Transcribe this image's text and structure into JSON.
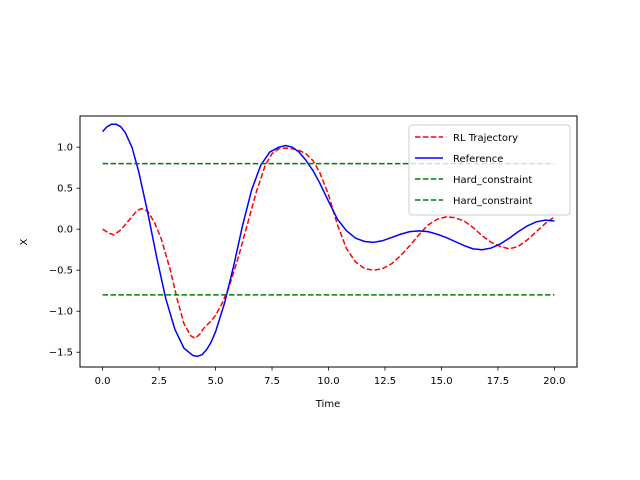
{
  "chart_data": {
    "type": "line",
    "title": "",
    "xlabel": "Time",
    "ylabel": "X",
    "xlim": [
      -1.0,
      21.0
    ],
    "ylim": [
      -1.68,
      1.38
    ],
    "xticks": [
      0.0,
      2.5,
      5.0,
      7.5,
      10.0,
      12.5,
      15.0,
      17.5,
      20.0
    ],
    "xtick_labels": [
      "0.0",
      "2.5",
      "5.0",
      "7.5",
      "10.0",
      "12.5",
      "15.0",
      "17.5",
      "20.0"
    ],
    "yticks": [
      1.0,
      0.5,
      0.0,
      -0.5,
      -1.0,
      -1.5
    ],
    "ytick_labels": [
      "1.0",
      "0.5",
      "0.0",
      "−0.5",
      "−1.0",
      "−1.5"
    ],
    "grid": false,
    "legend_position": "top-right",
    "series": [
      {
        "name": "RL Trajectory",
        "color": "#ff0000",
        "style": "dashed",
        "x": [
          0.0,
          0.3,
          0.5,
          0.8,
          1.2,
          1.5,
          1.7,
          2.0,
          2.3,
          2.6,
          3.0,
          3.3,
          3.6,
          3.9,
          4.1,
          4.3,
          4.5,
          4.8,
          5.0,
          5.3,
          5.6,
          6.0,
          6.4,
          6.8,
          7.2,
          7.5,
          7.8,
          8.1,
          8.4,
          8.7,
          9.0,
          9.3,
          9.6,
          10.0,
          10.4,
          10.8,
          11.2,
          11.6,
          12.0,
          12.4,
          12.8,
          13.2,
          13.6,
          14.0,
          14.4,
          14.8,
          15.2,
          15.6,
          16.0,
          16.4,
          16.8,
          17.2,
          17.6,
          18.0,
          18.4,
          18.8,
          19.2,
          19.6,
          20.0
        ],
        "y": [
          0.0,
          -0.05,
          -0.07,
          -0.01,
          0.12,
          0.22,
          0.25,
          0.22,
          0.08,
          -0.12,
          -0.5,
          -0.85,
          -1.15,
          -1.3,
          -1.33,
          -1.28,
          -1.2,
          -1.12,
          -1.05,
          -0.9,
          -0.7,
          -0.35,
          0.05,
          0.45,
          0.78,
          0.92,
          0.98,
          0.99,
          0.98,
          0.96,
          0.92,
          0.84,
          0.7,
          0.42,
          0.05,
          -0.24,
          -0.4,
          -0.48,
          -0.5,
          -0.48,
          -0.42,
          -0.32,
          -0.2,
          -0.07,
          0.05,
          0.12,
          0.15,
          0.14,
          0.1,
          0.02,
          -0.08,
          -0.16,
          -0.21,
          -0.24,
          -0.21,
          -0.13,
          -0.03,
          0.07,
          0.15
        ]
      },
      {
        "name": "Reference",
        "color": "#0000ff",
        "style": "solid",
        "x": [
          0.0,
          0.2,
          0.4,
          0.6,
          0.8,
          1.0,
          1.3,
          1.6,
          2.0,
          2.4,
          2.8,
          3.2,
          3.6,
          4.0,
          4.2,
          4.4,
          4.6,
          4.8,
          5.0,
          5.4,
          5.8,
          6.2,
          6.6,
          7.0,
          7.4,
          7.8,
          8.1,
          8.4,
          8.7,
          9.0,
          9.3,
          9.6,
          10.0,
          10.4,
          10.8,
          11.2,
          11.6,
          12.0,
          12.4,
          12.8,
          13.2,
          13.6,
          14.0,
          14.4,
          14.8,
          15.2,
          15.6,
          16.0,
          16.4,
          16.8,
          17.2,
          17.6,
          18.0,
          18.4,
          18.8,
          19.2,
          19.6,
          20.0
        ],
        "y": [
          1.19,
          1.25,
          1.28,
          1.28,
          1.25,
          1.18,
          1.0,
          0.7,
          0.2,
          -0.35,
          -0.85,
          -1.22,
          -1.45,
          -1.54,
          -1.55,
          -1.53,
          -1.47,
          -1.38,
          -1.25,
          -0.9,
          -0.45,
          0.05,
          0.48,
          0.78,
          0.94,
          1.0,
          1.02,
          1.0,
          0.94,
          0.84,
          0.72,
          0.57,
          0.34,
          0.12,
          -0.02,
          -0.11,
          -0.15,
          -0.16,
          -0.14,
          -0.1,
          -0.06,
          -0.03,
          -0.02,
          -0.03,
          -0.06,
          -0.1,
          -0.15,
          -0.2,
          -0.24,
          -0.25,
          -0.23,
          -0.18,
          -0.11,
          -0.03,
          0.04,
          0.09,
          0.11,
          0.1
        ]
      },
      {
        "name": "Hard_constraint",
        "color": "#008000",
        "style": "dashed",
        "x": [
          0.0,
          20.0
        ],
        "y": [
          0.8,
          0.8
        ]
      },
      {
        "name": "Hard_constraint",
        "color": "#008000",
        "style": "dashed",
        "x": [
          0.0,
          20.0
        ],
        "y": [
          -0.8,
          -0.8
        ]
      }
    ]
  }
}
